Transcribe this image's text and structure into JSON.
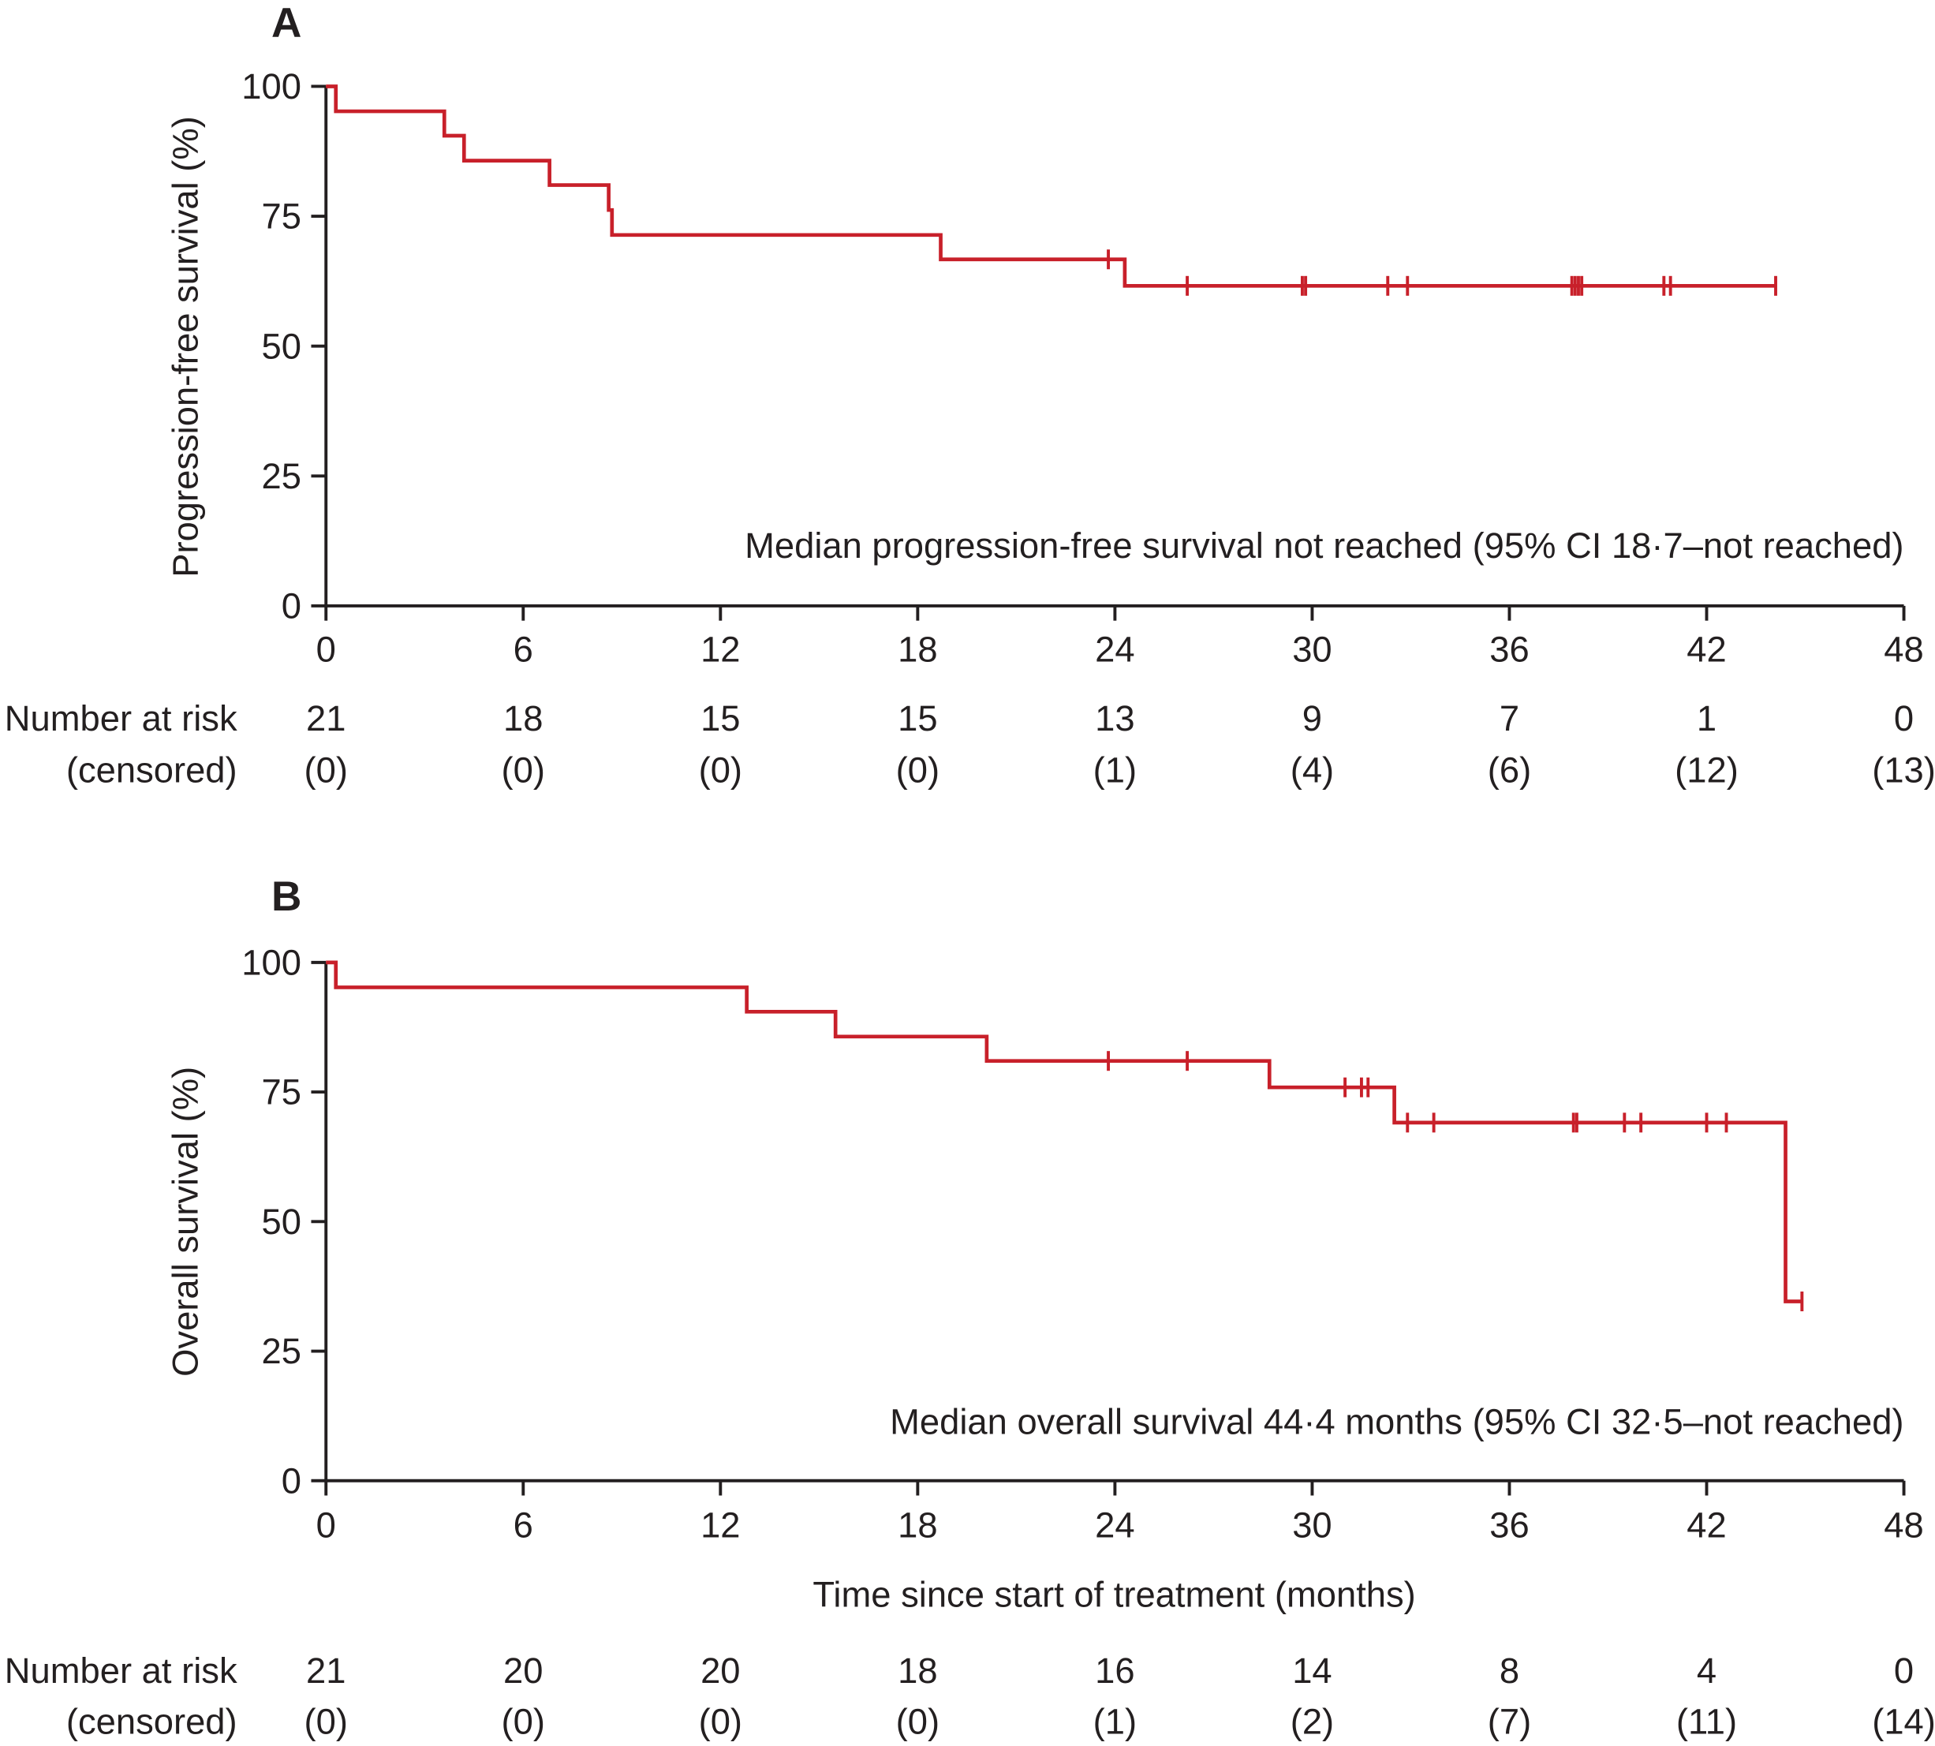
{
  "chart_data": [
    {
      "panel_label": "A",
      "type": "line",
      "step": true,
      "ylabel": "Progression-free survival (%)",
      "xlabel": "",
      "xlim": [
        0,
        48
      ],
      "ylim": [
        0,
        100
      ],
      "xticks": [
        0,
        6,
        12,
        18,
        24,
        30,
        36,
        42,
        48
      ],
      "yticks": [
        0,
        25,
        50,
        75,
        100
      ],
      "annotation": "Median progression-free survival not reached (95% CI 18·7–not reached)",
      "line_color": "#c8202a",
      "steps": [
        [
          0,
          100
        ],
        [
          0.3,
          95.2
        ],
        [
          3.6,
          90.5
        ],
        [
          4.2,
          85.7
        ],
        [
          6.8,
          81.0
        ],
        [
          8.6,
          76.2
        ],
        [
          8.7,
          71.4
        ],
        [
          18.7,
          66.7
        ],
        [
          24.3,
          61.6
        ]
      ],
      "end_x": 44.1,
      "censored": [
        23.8,
        26.2,
        29.7,
        29.8,
        32.3,
        32.9,
        37.9,
        38.0,
        38.1,
        38.2,
        40.7,
        40.9,
        44.1
      ],
      "risk_table": {
        "row1_label": "Number at risk",
        "row2_label": "(censored)",
        "at_risk": [
          "21",
          "18",
          "15",
          "15",
          "13",
          "9",
          "7",
          "1",
          "0"
        ],
        "censored": [
          "(0)",
          "(0)",
          "(0)",
          "(0)",
          "(1)",
          "(4)",
          "(6)",
          "(12)",
          "(13)"
        ]
      }
    },
    {
      "panel_label": "B",
      "type": "line",
      "step": true,
      "ylabel": "Overall survival (%)",
      "xlabel": "Time since start of treatment (months)",
      "xlim": [
        0,
        48
      ],
      "ylim": [
        0,
        100
      ],
      "xticks": [
        0,
        6,
        12,
        18,
        24,
        30,
        36,
        42,
        48
      ],
      "yticks": [
        0,
        25,
        50,
        75,
        100
      ],
      "annotation": "Median overall survival 44·4 months (95% CI 32·5–not reached)",
      "line_color": "#c8202a",
      "steps": [
        [
          0,
          100
        ],
        [
          0.3,
          95.2
        ],
        [
          12.8,
          90.5
        ],
        [
          15.5,
          85.7
        ],
        [
          20.1,
          81.0
        ],
        [
          28.7,
          75.9
        ],
        [
          32.5,
          69.1
        ],
        [
          44.4,
          34.6
        ]
      ],
      "end_x": 44.9,
      "censored": [
        23.8,
        26.2,
        31.0,
        31.5,
        31.7,
        32.9,
        33.7,
        37.95,
        38.05,
        39.5,
        40.0,
        42.0,
        42.6,
        44.9
      ],
      "risk_table": {
        "row1_label": "Number at risk",
        "row2_label": "(censored)",
        "at_risk": [
          "21",
          "20",
          "20",
          "18",
          "16",
          "14",
          "8",
          "4",
          "0"
        ],
        "censored": [
          "(0)",
          "(0)",
          "(0)",
          "(0)",
          "(1)",
          "(2)",
          "(7)",
          "(11)",
          "(14)"
        ]
      }
    }
  ]
}
